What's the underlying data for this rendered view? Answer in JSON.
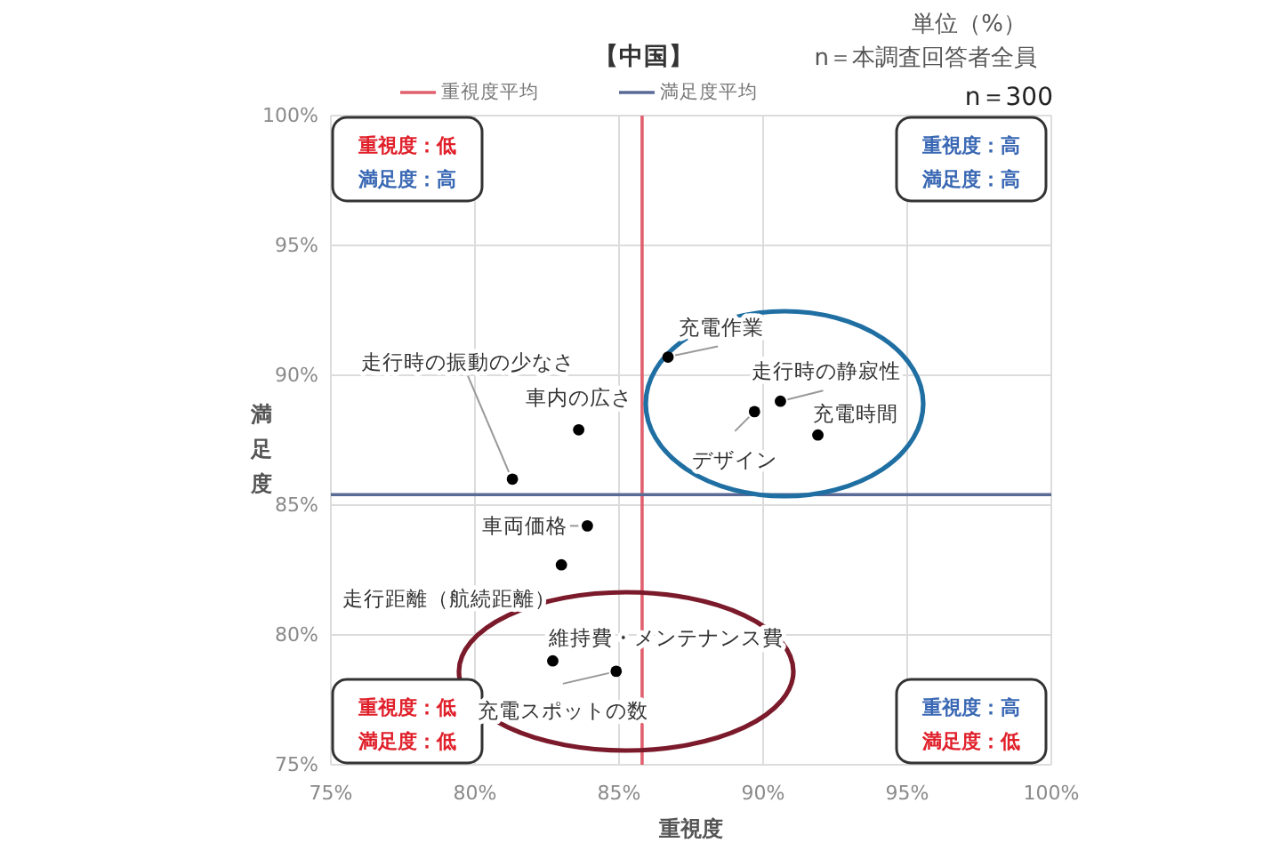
{
  "chart_data": {
    "type": "scatter",
    "title": "【中国】",
    "xlabel": "重視度",
    "ylabel": "満足度",
    "x": [
      81.3,
      83.6,
      86.7,
      89.7,
      90.6,
      91.9,
      83.9,
      83.0,
      82.7,
      84.9
    ],
    "values": [
      86.0,
      87.9,
      90.7,
      88.6,
      89.0,
      87.7,
      84.2,
      82.7,
      79.0,
      78.6
    ],
    "color": "#000000",
    "marker": "circle",
    "xlim": [
      75,
      100
    ],
    "ylim": [
      75,
      100
    ],
    "xticks": [
      {
        "value": 75,
        "label": "75%"
      },
      {
        "value": 80,
        "label": "80%"
      },
      {
        "value": 85,
        "label": "85%"
      },
      {
        "value": 90,
        "label": "90%"
      },
      {
        "value": 95,
        "label": "95%"
      },
      {
        "value": 100,
        "label": "100%"
      }
    ],
    "yticks": [
      {
        "value": 75,
        "label": "75%"
      },
      {
        "value": 80,
        "label": "80%"
      },
      {
        "value": 85,
        "label": "85%"
      },
      {
        "value": 90,
        "label": "90%"
      },
      {
        "value": 95,
        "label": "95%"
      },
      {
        "value": 100,
        "label": "100%"
      }
    ],
    "grid": true,
    "legend": "top",
    "ref_lines": [
      {
        "axis": "x",
        "value": 85.8,
        "label": "重視度平均",
        "color": "#e0606e"
      },
      {
        "axis": "y",
        "value": 85.4,
        "label": "満足度平均",
        "color": "#5a6a96"
      }
    ],
    "annotations": [
      "単位（%）",
      "n＝本調査回答者全員",
      "n＝300",
      "重視度：低",
      "満足度：高",
      "重視度：高",
      "満足度：高",
      "重視度：低",
      "満足度：低",
      "重視度：高",
      "満足度：低",
      {
        "text": "走行時の振動の少なさ",
        "x": 81.3,
        "y": 86.0
      },
      {
        "text": "車内の広さ",
        "x": 83.6,
        "y": 87.9
      },
      {
        "text": "充電作業",
        "x": 86.7,
        "y": 90.7
      },
      {
        "text": "デザイン",
        "x": 89.7,
        "y": 88.6
      },
      {
        "text": "走行時の静寂性",
        "x": 90.6,
        "y": 89.0
      },
      {
        "text": "充電時間",
        "x": 91.9,
        "y": 87.7
      },
      {
        "text": "車両価格",
        "x": 83.9,
        "y": 84.2
      },
      {
        "text": "走行距離（航続距離）",
        "x": 83.0,
        "y": 82.7
      },
      {
        "text": "維持費・メンテナンス費",
        "x": 82.7,
        "y": 79.0
      },
      {
        "text": "充電スポットの数",
        "x": 84.9,
        "y": 78.6
      }
    ]
  }
}
